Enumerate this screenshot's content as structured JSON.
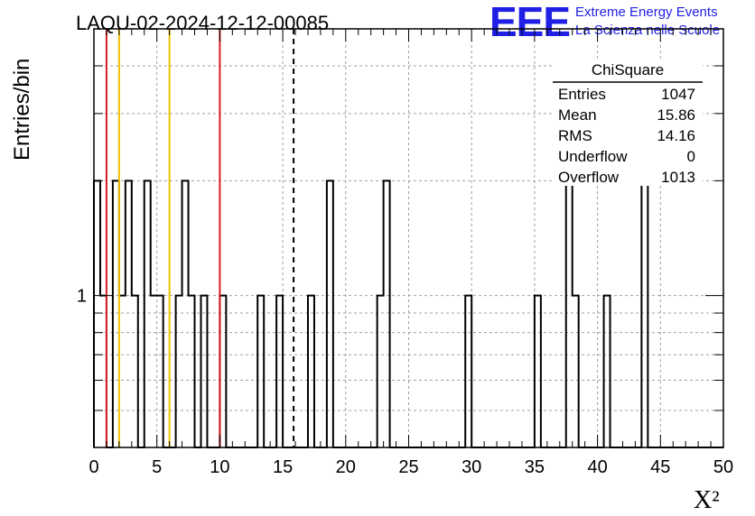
{
  "chart_data": {
    "type": "histogram",
    "title": "LAQU-02-2024-12-12-00085",
    "xlabel": "X²",
    "ylabel": "Entries/bin",
    "xlim": [
      0,
      50
    ],
    "y_scale": "log",
    "ylim": [
      0.4,
      5
    ],
    "xticks": [
      "0",
      "5",
      "10",
      "15",
      "20",
      "25",
      "30",
      "35",
      "40",
      "45",
      "50"
    ],
    "yticks": [
      "1"
    ],
    "grid": true,
    "bin_width": 0.5,
    "bins": [
      {
        "x": 0.0,
        "count": 2
      },
      {
        "x": 0.5,
        "count": 1
      },
      {
        "x": 1.5,
        "count": 2
      },
      {
        "x": 2.0,
        "count": 1
      },
      {
        "x": 2.5,
        "count": 2
      },
      {
        "x": 3.0,
        "count": 1
      },
      {
        "x": 4.0,
        "count": 2
      },
      {
        "x": 4.5,
        "count": 1
      },
      {
        "x": 5.0,
        "count": 1
      },
      {
        "x": 6.5,
        "count": 1
      },
      {
        "x": 7.0,
        "count": 2
      },
      {
        "x": 7.5,
        "count": 1
      },
      {
        "x": 8.5,
        "count": 1
      },
      {
        "x": 10.0,
        "count": 1
      },
      {
        "x": 13.0,
        "count": 1
      },
      {
        "x": 14.5,
        "count": 1
      },
      {
        "x": 17.0,
        "count": 1
      },
      {
        "x": 18.5,
        "count": 2
      },
      {
        "x": 22.5,
        "count": 1
      },
      {
        "x": 23.0,
        "count": 2
      },
      {
        "x": 29.5,
        "count": 1
      },
      {
        "x": 35.0,
        "count": 1
      },
      {
        "x": 37.5,
        "count": 2
      },
      {
        "x": 38.0,
        "count": 1
      },
      {
        "x": 40.5,
        "count": 1
      },
      {
        "x": 43.5,
        "count": 2
      }
    ],
    "vertical_lines": [
      {
        "x": 1.0,
        "color": "#d62020",
        "style": "solid"
      },
      {
        "x": 2.0,
        "color": "#f0c000",
        "style": "solid"
      },
      {
        "x": 6.0,
        "color": "#f0c000",
        "style": "solid"
      },
      {
        "x": 10.0,
        "color": "#d62020",
        "style": "solid"
      },
      {
        "x": 15.86,
        "color": "#000000",
        "style": "dashed"
      }
    ],
    "stats_box": {
      "title": "ChiSquare",
      "rows": [
        {
          "label": "Entries",
          "value": "1047"
        },
        {
          "label": "Mean",
          "value": "15.86"
        },
        {
          "label": "RMS",
          "value": "14.16"
        },
        {
          "label": "Underflow",
          "value": "0"
        },
        {
          "label": "Overflow",
          "value": "1013"
        }
      ]
    }
  },
  "logo": {
    "mark": "EEE",
    "line1": "Extreme Energy Events",
    "line2": "La Scienza nelle Scuole",
    "color": "#1f1fe6"
  }
}
